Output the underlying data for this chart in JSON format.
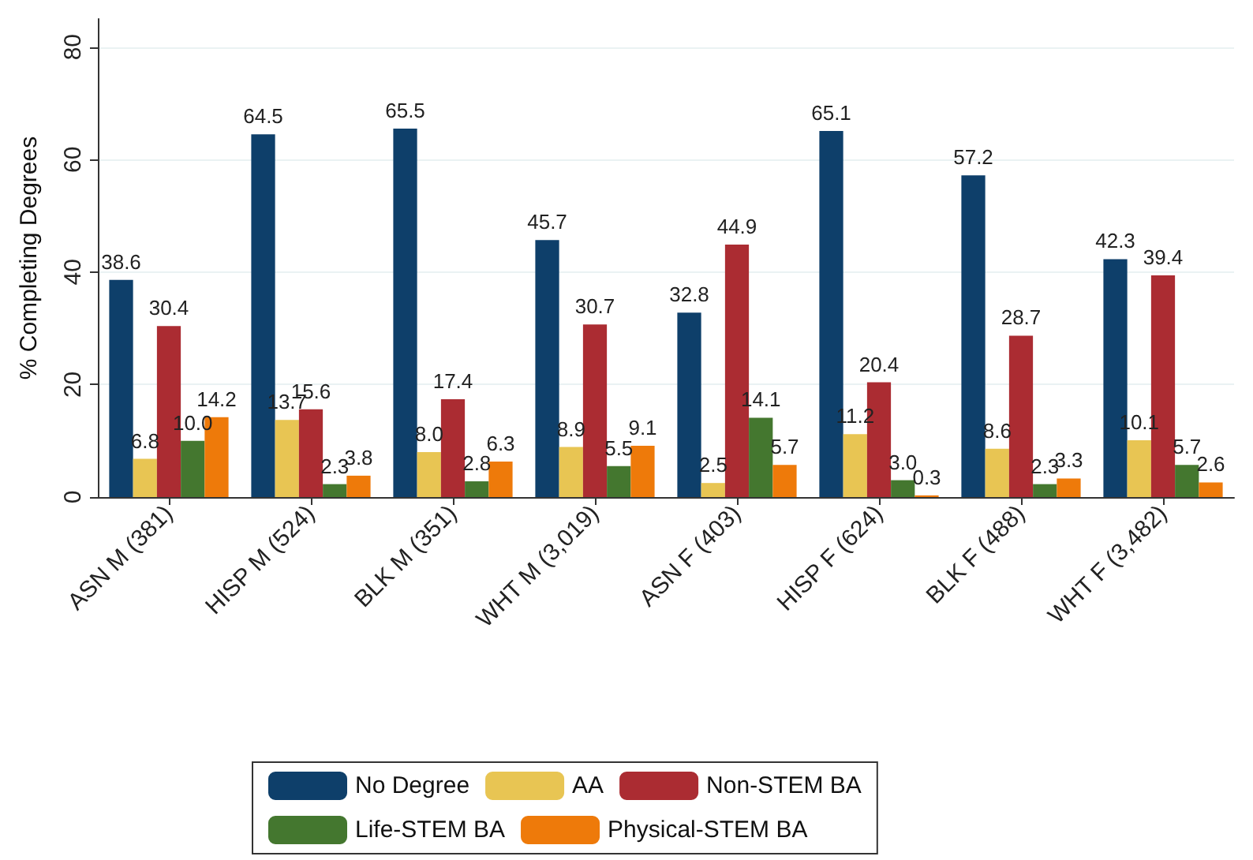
{
  "chart_data": {
    "type": "bar",
    "ylabel": "% Completing Degrees",
    "categories": [
      "ASN M (381)",
      "HISP M (524)",
      "BLK M (351)",
      "WHT M (3,019)",
      "ASN F (403)",
      "HISP F (624)",
      "BLK F (488)",
      "WHT F (3,482)"
    ],
    "series": [
      {
        "name": "No Degree",
        "color": "#0e3f6a",
        "values": [
          38.6,
          64.5,
          65.5,
          45.7,
          32.8,
          65.1,
          57.2,
          42.3
        ],
        "value_labels": [
          "38.6",
          "64.5",
          "65.5",
          "45.7",
          "32.8",
          "65.1",
          "57.2",
          "42.3"
        ]
      },
      {
        "name": "AA",
        "color": "#e8c553",
        "values": [
          6.8,
          13.7,
          8.0,
          8.9,
          2.5,
          11.2,
          8.6,
          10.1
        ],
        "value_labels": [
          "6.8",
          "13.7",
          "8.0",
          "8.9",
          "2.5",
          "11.2",
          "8.6",
          "10.1"
        ]
      },
      {
        "name": "Non-STEM BA",
        "color": "#ab2c32",
        "values": [
          30.4,
          15.6,
          17.4,
          30.7,
          44.9,
          20.4,
          28.7,
          39.4
        ],
        "value_labels": [
          "30.4",
          "15.6",
          "17.4",
          "30.7",
          "44.9",
          "20.4",
          "28.7",
          "39.4"
        ]
      },
      {
        "name": "Life-STEM BA",
        "color": "#44772f",
        "values": [
          10.0,
          2.3,
          2.8,
          5.5,
          14.1,
          3.0,
          2.3,
          5.7
        ],
        "value_labels": [
          "10.0",
          "2.3",
          "2.8",
          "5.5",
          "14.1",
          "3.0",
          "2.3",
          "5.7"
        ]
      },
      {
        "name": "Physical-STEM BA",
        "color": "#ee7a0a",
        "values": [
          14.2,
          3.8,
          6.3,
          9.1,
          5.7,
          0.3,
          3.3,
          2.6
        ],
        "value_labels": [
          "14.2",
          "3.8",
          "6.3",
          "9.1",
          "5.7",
          "0.3",
          "3.3",
          "2.6"
        ]
      }
    ],
    "ylim": [
      0,
      85
    ],
    "yticks": [
      0,
      20,
      40,
      60,
      80
    ],
    "grid": "y",
    "legend": "bottom"
  }
}
